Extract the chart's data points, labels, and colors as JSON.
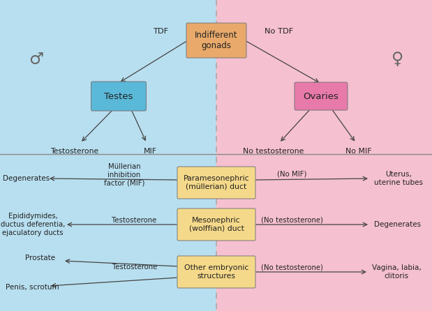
{
  "fig_width": 6.19,
  "fig_height": 4.46,
  "dpi": 100,
  "bg_left": "#b8dff0",
  "bg_right": "#f5c0d0",
  "divider_color": "#999999",
  "box_indifferent_color": "#e8a96a",
  "box_testes_color": "#5ab8d8",
  "box_ovaries_color": "#e87aaa",
  "box_duct_color": "#f5d98a",
  "text_color": "#222222",
  "male_symbol": "♂",
  "female_symbol": "♀",
  "indifferent_label": "Indifferent\ngonads",
  "testes_label": "Testes",
  "ovaries_label": "Ovaries",
  "tdf_label": "TDF",
  "no_tdf_label": "No TDF",
  "testosterone_label": "Testosterone",
  "mif_label": "MIF",
  "no_testosterone_label": "No testosterone",
  "no_mif_label": "No MIF",
  "para_duct_label": "Paramesonephric\n(müllerian) duct",
  "meso_duct_label": "Mesonephric\n(wolffian) duct",
  "other_struct_label": "Other embryonic\nstructures",
  "mullerian_inh_label": "Müllerian\ninhibition\nfactor (MIF)",
  "degenerates_label": "Degenerates",
  "epididymides_label": "Epididymides,\nductus deferentia,\nejaculatory ducts",
  "prostate_label": "Prostate",
  "penis_scrotum_label": "Penis, scrotum",
  "uterus_label": "Uterus,\nuterine tubes",
  "degenerates2_label": "Degenerates",
  "vagina_label": "Vagina, labia,\nclitoris",
  "no_mif_arrow_label": "(No MIF)",
  "no_test_arrow1_label": "(No testosterone)",
  "no_test_arrow2_label": "(No testosterone)",
  "testosterone_arrow1": "Testosterone",
  "testosterone_arrow2": "Testosterone"
}
